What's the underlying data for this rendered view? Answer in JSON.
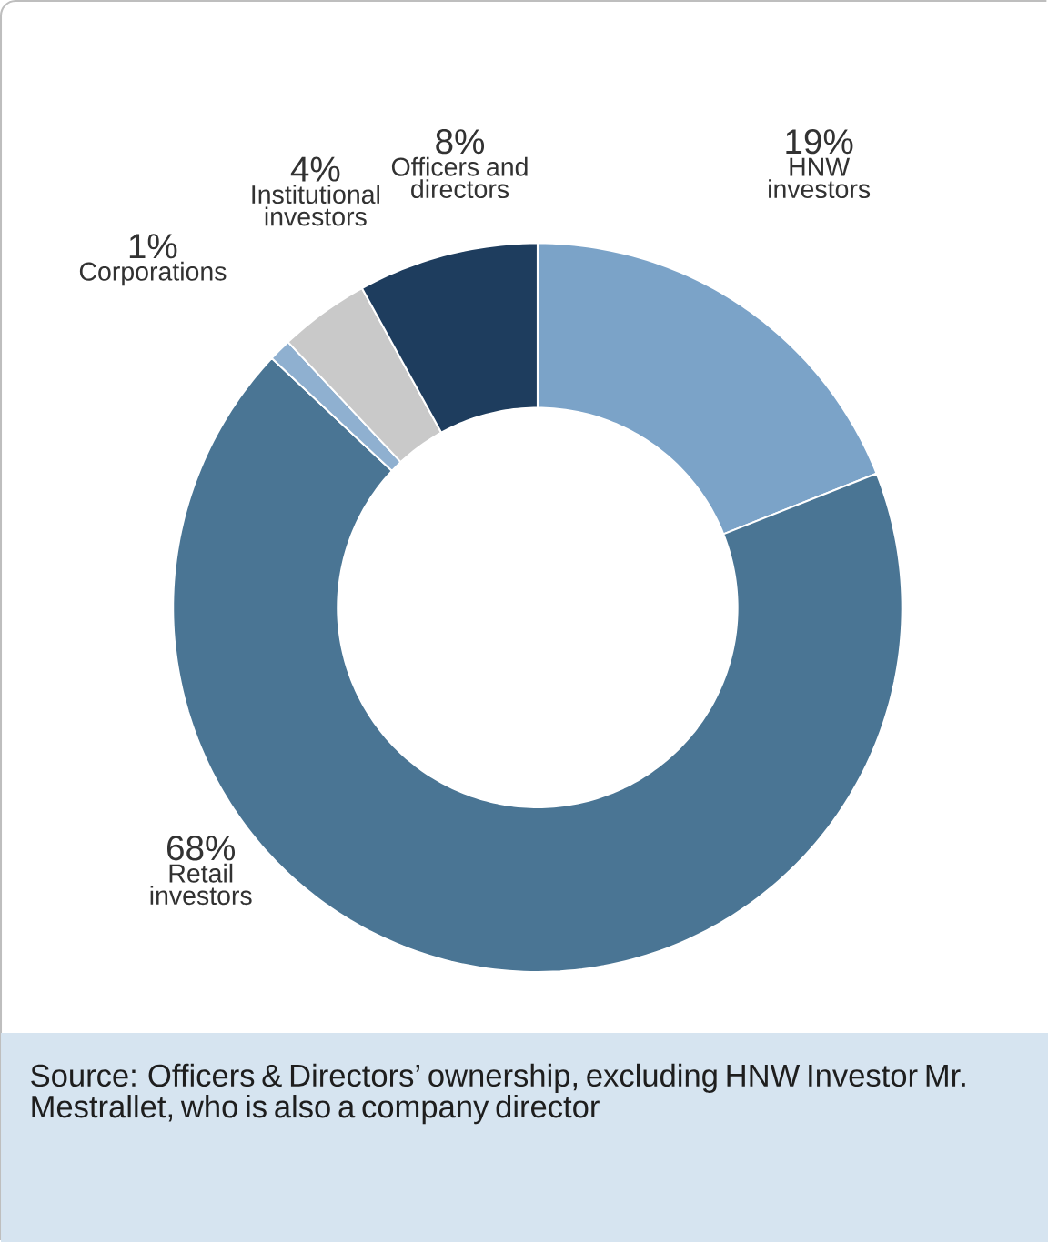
{
  "chart_data": {
    "type": "donut",
    "categories": [
      "HNW investors",
      "Retail investors",
      "Corporations",
      "Institutional investors",
      "Officers and directors"
    ],
    "values": [
      19,
      68,
      1,
      4,
      8
    ],
    "value_labels": [
      "19%",
      "68%",
      "1%",
      "4%",
      "8%"
    ],
    "colors": [
      "#7ba3c8",
      "#4a7594",
      "#8fb0d0",
      "#c9c9c9",
      "#1e3d5e"
    ],
    "annotations": [
      "Source: Officers & Directors’ ownership, excluding HNW Investor Mr. Mestrallet, who is also a company director"
    ]
  }
}
